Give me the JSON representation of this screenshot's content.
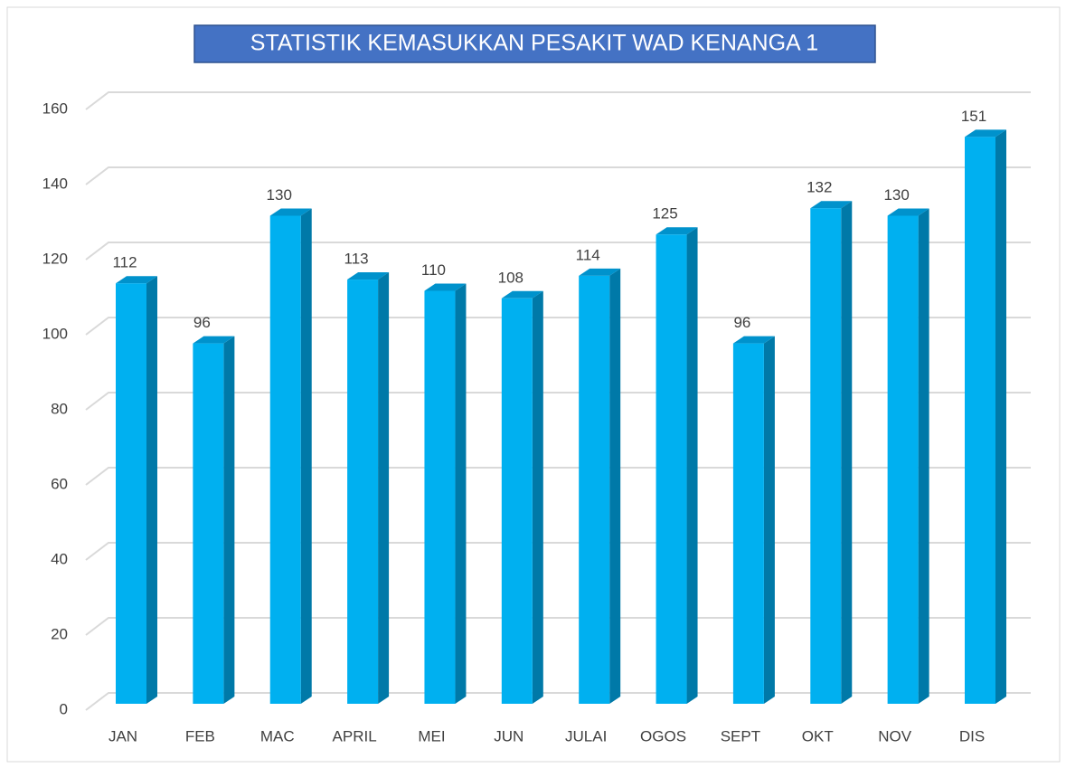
{
  "chart_data": {
    "type": "bar",
    "title": "STATISTIK KEMASUKKAN PESAKIT WAD KENANGA 1",
    "categories": [
      "JAN",
      "FEB",
      "MAC",
      "APRIL",
      "MEI",
      "JUN",
      "JULAI",
      "OGOS",
      "SEPT",
      "OKT",
      "NOV",
      "DIS"
    ],
    "values": [
      112,
      96,
      130,
      113,
      110,
      108,
      114,
      125,
      96,
      132,
      130,
      151
    ],
    "color": "#00b0f0",
    "ylim": [
      0,
      160
    ],
    "yticks": [
      0,
      20,
      40,
      60,
      80,
      100,
      120,
      140,
      160
    ],
    "grid": true
  }
}
